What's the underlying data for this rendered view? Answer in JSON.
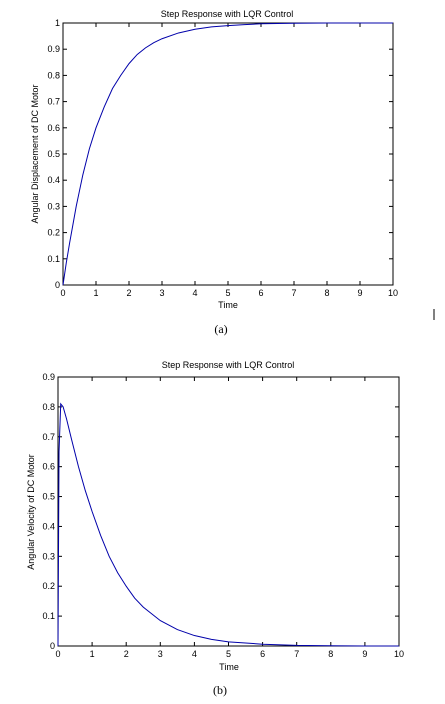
{
  "chart_data": [
    {
      "type": "line",
      "title": "Step Response with LQR Control",
      "xlabel": "Time",
      "ylabel": "Angular Displacement of DC Motor",
      "caption": "(a)",
      "xlim": [
        0,
        10
      ],
      "ylim": [
        0,
        1
      ],
      "xticks": [
        "0",
        "1",
        "2",
        "3",
        "4",
        "5",
        "6",
        "7",
        "8",
        "9",
        "10"
      ],
      "yticks": [
        "0",
        "0.1",
        "0.2",
        "0.3",
        "0.4",
        "0.5",
        "0.6",
        "0.7",
        "0.8",
        "0.9",
        "1"
      ],
      "grid": false,
      "series_color": "#0000aa",
      "series": [
        {
          "x": [
            0,
            0.1,
            0.2,
            0.3,
            0.4,
            0.5,
            0.6,
            0.8,
            1.0,
            1.25,
            1.5,
            1.75,
            2.0,
            2.25,
            2.5,
            2.75,
            3.0,
            3.5,
            4.0,
            4.5,
            5.0,
            5.5,
            6.0,
            7.0,
            8.0,
            9.0,
            10.0
          ],
          "y": [
            0,
            0.085,
            0.16,
            0.23,
            0.3,
            0.36,
            0.42,
            0.52,
            0.6,
            0.68,
            0.75,
            0.8,
            0.845,
            0.88,
            0.905,
            0.925,
            0.94,
            0.962,
            0.976,
            0.985,
            0.99,
            0.994,
            0.997,
            0.999,
            1.0,
            1.0,
            1.0
          ]
        }
      ]
    },
    {
      "type": "line",
      "title": "Step Response with LQR Control",
      "xlabel": "Time",
      "ylabel": "Angular Velocity of DC Motor",
      "caption": "(b)",
      "xlim": [
        0,
        10
      ],
      "ylim": [
        0,
        0.9
      ],
      "xticks": [
        "0",
        "1",
        "2",
        "3",
        "4",
        "5",
        "6",
        "7",
        "8",
        "9",
        "10"
      ],
      "yticks": [
        "0",
        "0.1",
        "0.2",
        "0.3",
        "0.4",
        "0.5",
        "0.6",
        "0.7",
        "0.8",
        "0.9"
      ],
      "grid": false,
      "series_color": "#0000aa",
      "series": [
        {
          "x": [
            0,
            0.03,
            0.08,
            0.15,
            0.25,
            0.4,
            0.6,
            0.8,
            1.0,
            1.25,
            1.5,
            1.75,
            2.0,
            2.25,
            2.5,
            3.0,
            3.5,
            4.0,
            4.5,
            5.0,
            6.0,
            7.0,
            8.0,
            9.0,
            10.0
          ],
          "y": [
            0,
            0.65,
            0.81,
            0.8,
            0.76,
            0.69,
            0.6,
            0.52,
            0.45,
            0.37,
            0.3,
            0.245,
            0.2,
            0.16,
            0.13,
            0.085,
            0.055,
            0.035,
            0.022,
            0.014,
            0.006,
            0.002,
            0.001,
            0.0,
            0.0
          ]
        }
      ]
    }
  ]
}
